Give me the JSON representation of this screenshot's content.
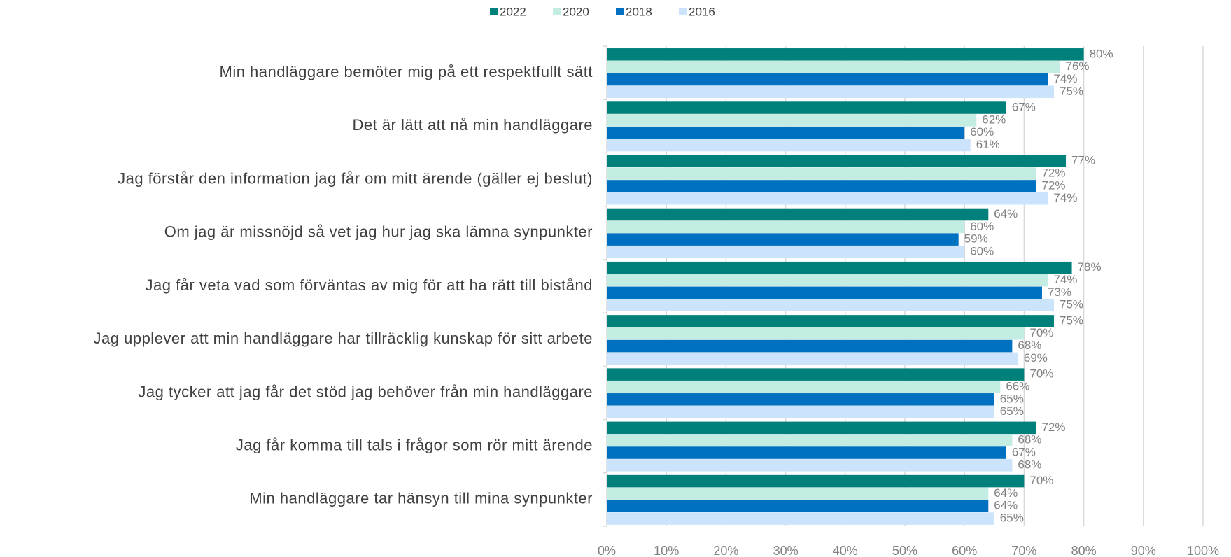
{
  "chart_data": {
    "type": "barh",
    "categories": [
      "Min handläggare bemöter mig på ett respektfullt sätt",
      "Det är lätt att nå min handläggare",
      "Jag förstår den information jag får om mitt ärende (gäller ej beslut)",
      "Om jag är missnöjd så vet jag hur jag ska lämna synpunkter",
      "Jag får veta vad som förväntas av mig för att ha rätt till bistånd",
      "Jag upplever att min handläggare har tillräcklig kunskap för sitt arbete",
      "Jag tycker att jag får det stöd jag behöver från min handläggare",
      "Jag får komma till tals i frågor som rör mitt ärende",
      "Min handläggare tar hänsyn till mina synpunkter"
    ],
    "series": [
      {
        "name": "2022",
        "color": "#00807a",
        "values": [
          80,
          67,
          77,
          64,
          78,
          75,
          70,
          72,
          70
        ],
        "value_labels": [
          "80%",
          "67%",
          "77%",
          "64%",
          "78%",
          "75%",
          "70%",
          "72%",
          "70%"
        ]
      },
      {
        "name": "2020",
        "color": "#c3ede3",
        "values": [
          76,
          62,
          72,
          60,
          74,
          70,
          66,
          68,
          64
        ],
        "value_labels": [
          "76%",
          "62%",
          "72%",
          "60%",
          "74%",
          "70%",
          "66%",
          "68%",
          "64%"
        ]
      },
      {
        "name": "2018",
        "color": "#0070c0",
        "values": [
          74,
          60,
          72,
          59,
          73,
          68,
          65,
          67,
          64
        ],
        "value_labels": [
          "74%",
          "60%",
          "72%",
          "59%",
          "73%",
          "68%",
          "65%",
          "67%",
          "64%"
        ]
      },
      {
        "name": "2016",
        "color": "#cce4fb",
        "values": [
          75,
          61,
          74,
          60,
          75,
          69,
          65,
          68,
          65
        ],
        "value_labels": [
          "75%",
          "61%",
          "74%",
          "60%",
          "75%",
          "69%",
          "65%",
          "68%",
          "65%"
        ]
      }
    ],
    "xlim": [
      0,
      100
    ],
    "xticks": [
      {
        "value": 0,
        "label": "0%"
      },
      {
        "value": 10,
        "label": "10%"
      },
      {
        "value": 20,
        "label": "20%"
      },
      {
        "value": 30,
        "label": "30%"
      },
      {
        "value": 40,
        "label": "40%"
      },
      {
        "value": 50,
        "label": "50%"
      },
      {
        "value": 60,
        "label": "60%"
      },
      {
        "value": 70,
        "label": "70%"
      },
      {
        "value": 80,
        "label": "80%"
      },
      {
        "value": 90,
        "label": "90%"
      },
      {
        "value": 100,
        "label": "100%"
      }
    ],
    "grid": true,
    "legend": "top"
  }
}
